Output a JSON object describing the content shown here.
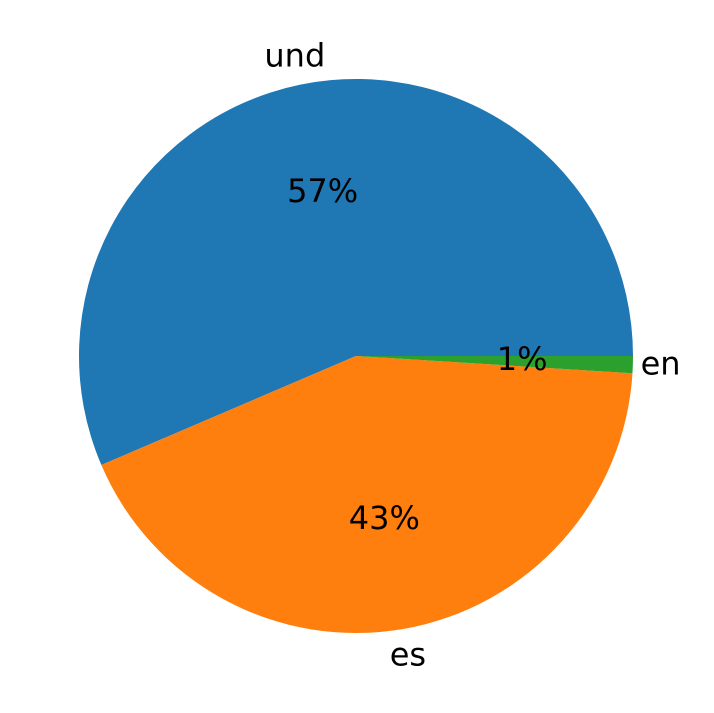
{
  "chart_data": {
    "type": "pie",
    "categories": [
      "und",
      "es",
      "en"
    ],
    "values": [
      57,
      43,
      1
    ],
    "value_labels": [
      "57%",
      "43%",
      "1%"
    ],
    "colors": [
      "#1f77b4",
      "#ff7f0e",
      "#2ca02c"
    ]
  }
}
